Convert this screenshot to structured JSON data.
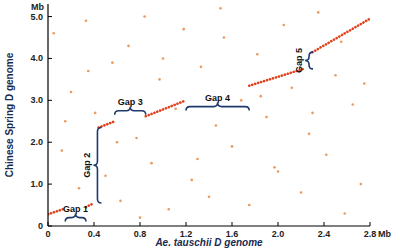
{
  "chart_data": {
    "type": "scatter",
    "x_label": "Ae. tauschii D genome",
    "y_label": "Chinese Spring D genome",
    "x_unit": "Mb",
    "y_unit": "Mb",
    "xlim": [
      0,
      2.8
    ],
    "ylim": [
      0,
      5.3
    ],
    "xticks": [
      0,
      0.4,
      0.8,
      1.2,
      1.6,
      {
        "value": 2,
        "label": "2.0"
      },
      2.4,
      2.8
    ],
    "yticks": [
      0,
      {
        "value": 1,
        "label": "1.0"
      },
      {
        "value": 2,
        "label": "2.0"
      },
      {
        "value": 3,
        "label": "3.0"
      },
      {
        "value": 4,
        "label": "4.0"
      },
      {
        "value": 5,
        "label": "5.0"
      }
    ],
    "series": [
      {
        "type": "scatter",
        "marker": "dot",
        "color": "#ec9a5c",
        "x": [
          0.05,
          0.12,
          0.2,
          0.27,
          0.33,
          0.41,
          0.5,
          0.56,
          0.63,
          0.7,
          0.77,
          0.84,
          0.9,
          0.97,
          1.05,
          1.11,
          1.18,
          1.25,
          1.33,
          1.4,
          1.46,
          1.53,
          1.6,
          1.68,
          1.75,
          1.82,
          1.9,
          1.97,
          2.05,
          2.12,
          2.2,
          2.27,
          2.35,
          2.42,
          2.5,
          2.58,
          2.65,
          2.72,
          0.15,
          0.6,
          1.0,
          1.5,
          2.0,
          2.55,
          0.35,
          0.8,
          1.3,
          1.85,
          2.3,
          2.75
        ],
        "values": [
          4.6,
          1.8,
          3.2,
          0.9,
          4.9,
          2.7,
          1.2,
          3.9,
          0.6,
          4.3,
          2.1,
          5.0,
          1.5,
          3.5,
          0.4,
          2.8,
          4.7,
          1.1,
          3.8,
          0.7,
          2.4,
          4.5,
          1.9,
          3.0,
          0.5,
          4.1,
          2.6,
          1.4,
          4.8,
          3.3,
          0.8,
          2.2,
          5.1,
          1.7,
          3.6,
          0.3,
          2.9,
          1.0,
          2.5,
          2.0,
          4.0,
          5.2,
          1.3,
          4.4,
          3.7,
          0.2,
          1.6,
          3.1,
          2.7,
          3.4
        ]
      },
      {
        "type": "line",
        "line_style": "dotted",
        "color": "#e0401c",
        "x": [
          0,
          0.15,
          0.2,
          0.33,
          0.4,
          0.42,
          0.44,
          0.58,
          0.7,
          0.85,
          1.2,
          1.45,
          1.75,
          2.22,
          2.25,
          2.3,
          2.8
        ],
        "values": [
          0.28,
          0.42,
          null,
          0.45,
          0.55,
          null,
          2.35,
          2.5,
          null,
          2.62,
          3.0,
          null,
          3.35,
          3.75,
          null,
          4.15,
          4.95
        ]
      }
    ],
    "annotations": [
      {
        "text": "Gap 1",
        "x": [
          0.15,
          0.33
        ],
        "y": 0.2
      },
      {
        "text": "Gap 2",
        "x": 0.43,
        "y": [
          0.55,
          2.35
        ]
      },
      {
        "text": "Gap 3",
        "x": [
          0.58,
          0.85
        ],
        "y": 2.75
      },
      {
        "text": "Gap 4",
        "x": [
          1.2,
          1.75
        ],
        "y": 2.85
      },
      {
        "text": "Gap 5",
        "x": 2.27,
        "y": [
          3.75,
          4.15
        ]
      }
    ]
  }
}
